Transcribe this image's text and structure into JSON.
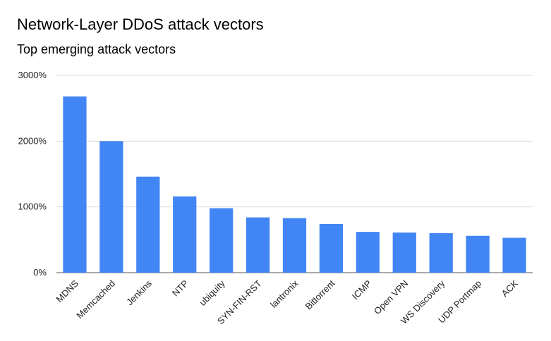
{
  "chart_data": {
    "type": "bar",
    "title": "Network-Layer DDoS attack vectors",
    "subtitle": "Top emerging attack vectors",
    "xlabel": "",
    "ylabel": "",
    "categories": [
      "MDNS",
      "Memcached",
      "Jenkins",
      "NTP",
      "ubiquity",
      "SYN-FIN-RST",
      "lantronix",
      "Bittorrent",
      "ICMP",
      "Open VPN",
      "WS Discovery",
      "UDP Portmap",
      "ACK"
    ],
    "series": [
      {
        "values": [
          2680,
          2000,
          1460,
          1160,
          980,
          840,
          830,
          740,
          620,
          610,
          600,
          560,
          530
        ]
      }
    ],
    "ylim": [
      0,
      3000
    ],
    "yticks": [
      0,
      1000,
      2000,
      3000
    ],
    "ytick_labels": [
      "0%",
      "1000%",
      "2000%",
      "3000%"
    ],
    "grid": true,
    "bar_color": "#4285f4",
    "grid_color": "#d9d9d9"
  }
}
